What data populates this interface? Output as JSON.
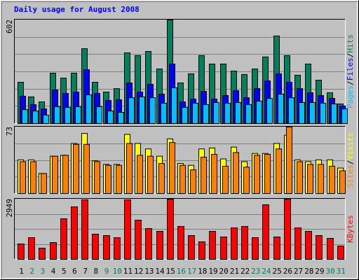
{
  "chart_data": [
    {
      "type": "bar",
      "title": "Daily usage for August 2008",
      "title_color": "#0000ff",
      "ylim": [
        0,
        602
      ],
      "yticks": [
        602
      ],
      "legend_separator": "/",
      "series": [
        {
          "name": "Hits",
          "color": "#00805c",
          "values": [
            240,
            155,
            126,
            293,
            264,
            293,
            435,
            240,
            183,
            203,
            411,
            395,
            419,
            317,
            602,
            236,
            289,
            395,
            346,
            346,
            305,
            285,
            317,
            387,
            509,
            395,
            281,
            346,
            252,
            179,
            114
          ]
        },
        {
          "name": "Files",
          "color": "#0000ff",
          "values": [
            159,
            110,
            85,
            195,
            175,
            183,
            313,
            175,
            134,
            138,
            236,
            183,
            228,
            171,
            346,
            126,
            142,
            187,
            142,
            163,
            191,
            150,
            203,
            248,
            289,
            240,
            203,
            179,
            163,
            146,
            102
          ]
        },
        {
          "name": "Pages",
          "color": "#00c0ff",
          "values": [
            81,
            73,
            49,
            98,
            94,
            98,
            167,
            98,
            73,
            65,
            150,
            155,
            150,
            118,
            208,
            94,
            118,
            110,
            122,
            118,
            122,
            110,
            130,
            146,
            171,
            150,
            122,
            122,
            118,
            114,
            85
          ]
        }
      ]
    },
    {
      "type": "bar",
      "ylim": [
        0,
        73
      ],
      "yticks": [
        73
      ],
      "legend_separator": "/",
      "series": [
        {
          "name": "Visits",
          "color": "#ffff00",
          "values": [
            37,
            37,
            22,
            41,
            42,
            55,
            66,
            36,
            32,
            32,
            65,
            55,
            49,
            41,
            60,
            33,
            31,
            49,
            50,
            38,
            51,
            35,
            44,
            44,
            55,
            64,
            37,
            35,
            37,
            37,
            28
          ]
        },
        {
          "name": "Sites",
          "color": "#ff8000",
          "values": [
            35,
            35,
            22,
            41,
            42,
            54,
            54,
            35,
            31,
            31,
            55,
            42,
            41,
            33,
            56,
            31,
            26,
            40,
            43,
            30,
            45,
            29,
            42,
            43,
            49,
            73,
            35,
            32,
            32,
            30,
            25
          ]
        }
      ]
    },
    {
      "type": "bar",
      "ylim": [
        0,
        2949
      ],
      "yticks": [
        2949
      ],
      "categories": [
        "1",
        "2",
        "3",
        "4",
        "5",
        "6",
        "7",
        "8",
        "9",
        "10",
        "11",
        "12",
        "13",
        "14",
        "15",
        "16",
        "17",
        "18",
        "19",
        "20",
        "21",
        "22",
        "23",
        "24",
        "25",
        "26",
        "27",
        "28",
        "29",
        "30",
        "31"
      ],
      "category_colors": [
        "#000000",
        "#00805c",
        "#00805c",
        "#000000",
        "#000000",
        "#000000",
        "#000000",
        "#000000",
        "#00805c",
        "#00805c",
        "#000000",
        "#000000",
        "#000000",
        "#000000",
        "#000000",
        "#00805c",
        "#00805c",
        "#000000",
        "#000000",
        "#000000",
        "#000000",
        "#000000",
        "#00805c",
        "#00805c",
        "#000000",
        "#000000",
        "#000000",
        "#000000",
        "#000000",
        "#00805c",
        "#00805c"
      ],
      "series": [
        {
          "name": "KBytes",
          "color": "#ff0000",
          "values": [
            755,
            1063,
            549,
            823,
            1989,
            2572,
            2915,
            1234,
            1166,
            1063,
            2915,
            1920,
            1509,
            1372,
            2949,
            1612,
            1166,
            858,
            1372,
            1097,
            1543,
            1612,
            1063,
            2675,
            1097,
            2949,
            1543,
            1372,
            1166,
            1029,
            652
          ]
        }
      ]
    }
  ]
}
